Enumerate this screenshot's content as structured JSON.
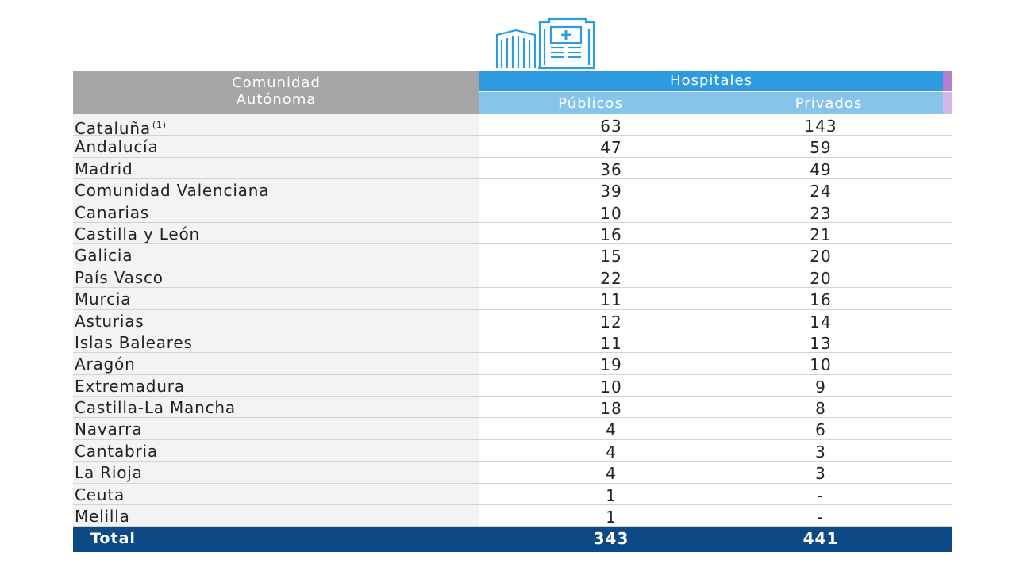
{
  "icon": "hospital-building-icon",
  "colors": {
    "header_left": "#a6a6a6",
    "header_top": "#2e9ae0",
    "header_sub": "#86c4ec",
    "accent_purple": "#b77fc9",
    "total_bg": "#0d4a85"
  },
  "header": {
    "community_line1": "Comunidad",
    "community_line2": "Autónoma",
    "hospitals": "Hospitales",
    "public": "Públicos",
    "private": "Privados"
  },
  "rows": [
    {
      "name": "Cataluña",
      "note": "(1)",
      "public": "63",
      "private": "143"
    },
    {
      "name": "Andalucía",
      "note": "",
      "public": "47",
      "private": "59"
    },
    {
      "name": "Madrid",
      "note": "",
      "public": "36",
      "private": "49"
    },
    {
      "name": "Comunidad Valenciana",
      "note": "",
      "public": "39",
      "private": "24"
    },
    {
      "name": "Canarias",
      "note": "",
      "public": "10",
      "private": "23"
    },
    {
      "name": "Castilla y León",
      "note": "",
      "public": "16",
      "private": "21"
    },
    {
      "name": "Galicia",
      "note": "",
      "public": "15",
      "private": "20"
    },
    {
      "name": "País Vasco",
      "note": "",
      "public": "22",
      "private": "20"
    },
    {
      "name": "Murcia",
      "note": "",
      "public": "11",
      "private": "16"
    },
    {
      "name": "Asturias",
      "note": "",
      "public": "12",
      "private": "14"
    },
    {
      "name": "Islas Baleares",
      "note": "",
      "public": "11",
      "private": "13"
    },
    {
      "name": "Aragón",
      "note": "",
      "public": "19",
      "private": "10"
    },
    {
      "name": "Extremadura",
      "note": "",
      "public": "10",
      "private": "9"
    },
    {
      "name": "Castilla-La Mancha",
      "note": "",
      "public": "18",
      "private": "8"
    },
    {
      "name": "Navarra",
      "note": "",
      "public": "4",
      "private": "6"
    },
    {
      "name": "Cantabria",
      "note": "",
      "public": "4",
      "private": "3"
    },
    {
      "name": "La Rioja",
      "note": "",
      "public": "4",
      "private": "3"
    },
    {
      "name": "Ceuta",
      "note": "",
      "public": "1",
      "private": "-"
    },
    {
      "name": "Melilla",
      "note": "",
      "public": "1",
      "private": "-"
    }
  ],
  "total": {
    "label": "Total",
    "public": "343",
    "private": "441"
  }
}
